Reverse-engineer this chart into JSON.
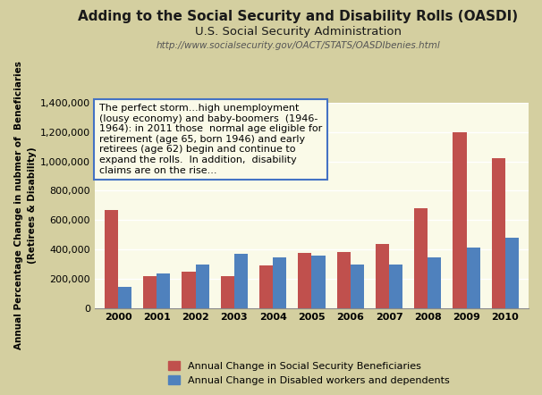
{
  "title": "Adding to the Social Security and Disability Rolls (OASDI)",
  "subtitle": "U.S. Social Security Administration",
  "url": "http://www.socialsecurity.gov/OACT/STATS/OASDIbenies.html",
  "years": [
    2000,
    2001,
    2002,
    2003,
    2004,
    2005,
    2006,
    2007,
    2008,
    2009,
    2010
  ],
  "social_security": [
    670000,
    220000,
    250000,
    215000,
    290000,
    375000,
    380000,
    440000,
    680000,
    1200000,
    1020000
  ],
  "disabled": [
    145000,
    235000,
    300000,
    370000,
    345000,
    355000,
    300000,
    295000,
    345000,
    415000,
    480000
  ],
  "ss_color": "#C0504D",
  "disabled_color": "#4F81BD",
  "bg_color": "#D4CFA0",
  "plot_bg": "#FAFAE8",
  "ylabel": "Annual Percentage Change in nubmer of  Beneficiaries\n(Retirees & Disability)",
  "ylim": [
    0,
    1400000
  ],
  "yticks": [
    0,
    200000,
    400000,
    600000,
    800000,
    1000000,
    1200000,
    1400000
  ],
  "legend_ss": "Annual Change in Social Security Beneficiaries",
  "legend_disabled": "Annual Change in Disabled workers and dependents",
  "annotation": "The perfect storm...high unemployment\n(lousy economy) and baby-boomers  (1946-\n1964): in 2011 those  normal age eligible for\nretirement (age 65, born 1946) and early\nretirees (age 62) begin and continue to\nexpand the rolls.  In addition,  disability\nclaims are on the rise...",
  "title_fontsize": 11,
  "subtitle_fontsize": 9.5,
  "url_fontsize": 7.5,
  "bar_width": 0.35
}
